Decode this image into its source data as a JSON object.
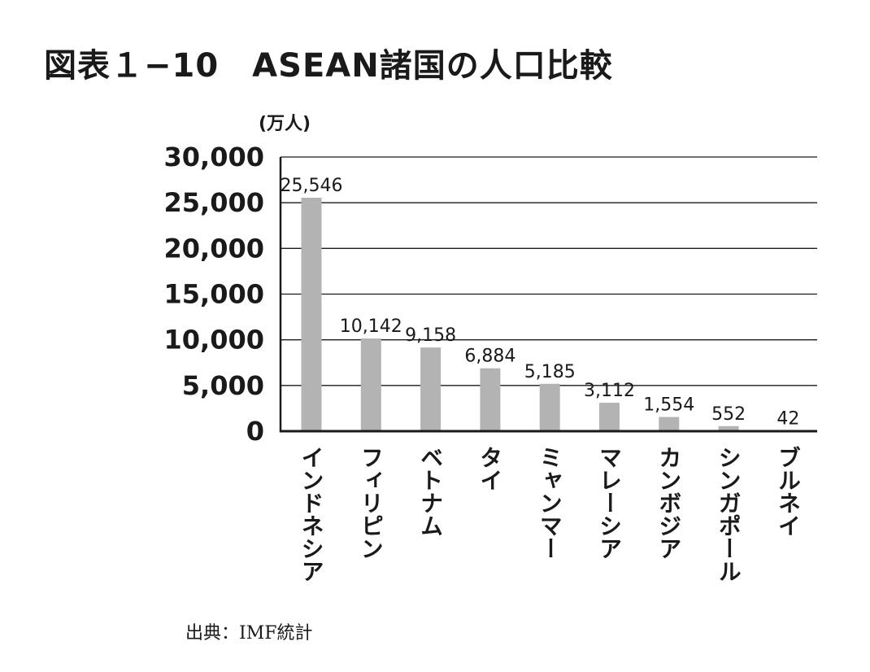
{
  "title": "図表１−10　ASEAN諸国の人口比較",
  "unit_label": "(万人)",
  "source": "出典：IMF統計",
  "colors": {
    "bar": "#b3b3b3",
    "grid": "#1a1a1a",
    "text": "#1a1a1a"
  },
  "chart_data": {
    "type": "bar",
    "title": "",
    "xlabel": "",
    "ylabel": "(万人)",
    "ylim": [
      0,
      30000
    ],
    "yticks": [
      0,
      5000,
      10000,
      15000,
      20000,
      25000,
      30000
    ],
    "ytick_labels": [
      "0",
      "5,000",
      "10,000",
      "15,000",
      "20,000",
      "25,000",
      "30,000"
    ],
    "grid": true,
    "categories": [
      "インドネシア",
      "フィリピン",
      "ベトナム",
      "タイ",
      "ミャンマー",
      "マレーシア",
      "カンボジア",
      "シンガポール",
      "ブルネイ"
    ],
    "values": [
      25546,
      10142,
      9158,
      6884,
      5185,
      3112,
      1554,
      552,
      42
    ],
    "value_labels": [
      "25,546",
      "10,142",
      "9,158",
      "6,884",
      "5,185",
      "3,112",
      "1,554",
      "552",
      "42"
    ]
  }
}
